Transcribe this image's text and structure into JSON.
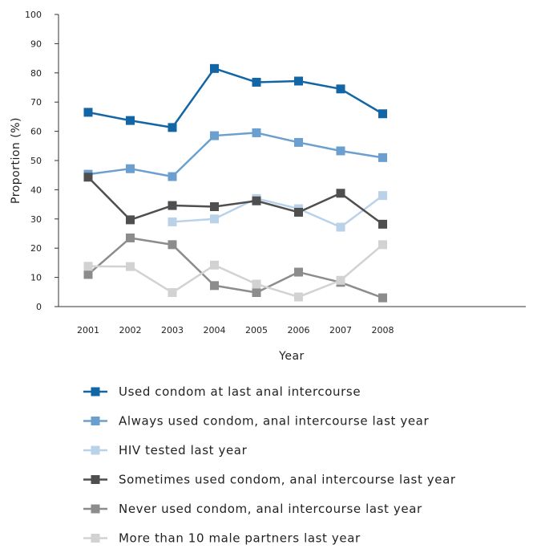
{
  "chart_data": {
    "type": "line",
    "title": "",
    "xlabel": "Year",
    "ylabel": "Proportion (%)",
    "categories": [
      "2001",
      "2002",
      "2003",
      "2004",
      "2005",
      "2006",
      "2007",
      "2008"
    ],
    "ylim": [
      0,
      100
    ],
    "yticks": [
      "0",
      "10",
      "20",
      "30",
      "40",
      "50",
      "60",
      "70",
      "80",
      "90",
      "100"
    ],
    "grid": false,
    "legend_position": "bottom",
    "series": [
      {
        "name": "Used condom at last anal intercourse",
        "color": "#1366a6",
        "values": [
          66.5,
          63.7,
          61.3,
          81.5,
          76.8,
          77.2,
          74.5,
          66.0
        ]
      },
      {
        "name": "Always used condom, anal intercourse last year",
        "color": "#6b9fd0",
        "values": [
          45.3,
          47.2,
          44.5,
          58.5,
          59.5,
          56.2,
          53.3,
          51.0
        ]
      },
      {
        "name": "HIV tested last year",
        "color": "#b9d2ea",
        "values": [
          null,
          null,
          29.0,
          30.0,
          37.0,
          33.5,
          27.2,
          38.0
        ]
      },
      {
        "name": "Sometimes used condom, anal intercourse last year",
        "color": "#4f4f4f",
        "values": [
          44.3,
          29.7,
          34.6,
          34.2,
          36.2,
          32.3,
          38.8,
          28.2
        ]
      },
      {
        "name": "Never used condom, anal intercourse last year",
        "color": "#8c8c8c",
        "values": [
          11.0,
          23.5,
          21.2,
          7.2,
          4.8,
          11.8,
          8.3,
          3.0
        ]
      },
      {
        "name": "More than 10 male partners last year",
        "color": "#d2d2d2",
        "values": [
          13.8,
          13.7,
          4.8,
          14.2,
          7.7,
          3.3,
          9.0,
          21.2
        ]
      }
    ]
  }
}
